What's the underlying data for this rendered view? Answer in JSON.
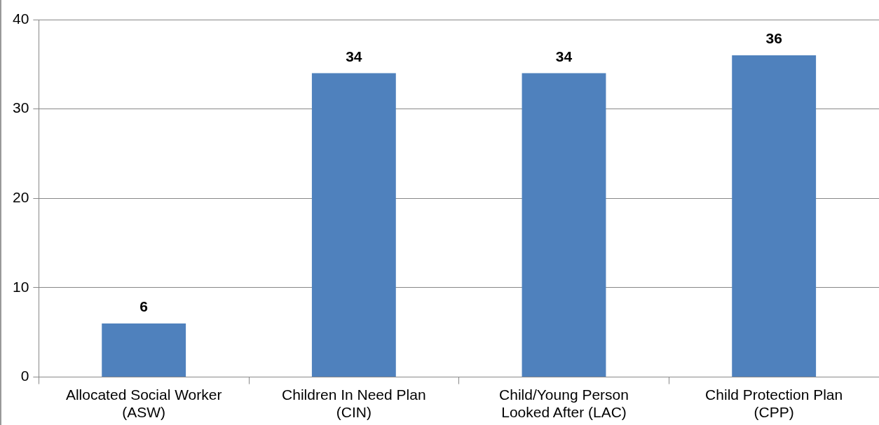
{
  "chart_data": {
    "type": "bar",
    "categories": [
      "Allocated Social Worker\n(ASW)",
      "Children In Need Plan\n(CIN)",
      "Child/Young Person\nLooked After (LAC)",
      "Child Protection Plan\n(CPP)"
    ],
    "values": [
      6,
      34,
      34,
      36
    ],
    "color": "#4f81bd",
    "ylim": [
      0,
      40
    ],
    "yticks": [
      0,
      10,
      20,
      30,
      40
    ],
    "grid": "y",
    "data_labels": true,
    "legend": false
  }
}
